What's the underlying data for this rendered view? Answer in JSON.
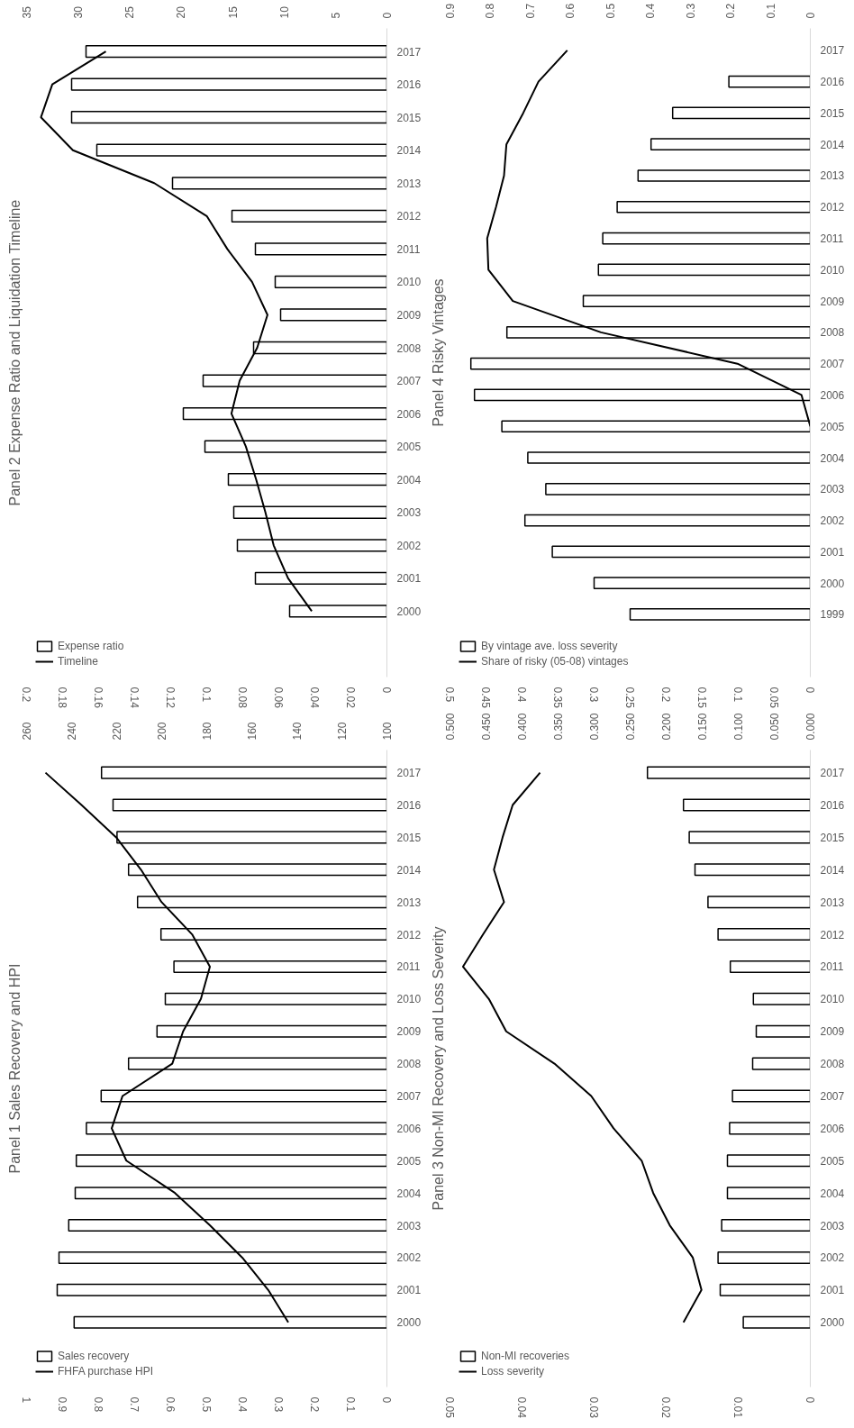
{
  "chart_data": [
    {
      "type": "bar",
      "orientation": "horizontal",
      "title": "Panel 2 Expense Ratio and Liquidation Timeline",
      "categories": [
        "2017",
        "2016",
        "2015",
        "2014",
        "2013",
        "2012",
        "2011",
        "2010",
        "2009",
        "2008",
        "2007",
        "2006",
        "2005",
        "2004",
        "2003",
        "2002",
        "2001",
        "2000"
      ],
      "series": [
        {
          "name": "Expense ratio",
          "type": "bar",
          "color": "#ffffff",
          "values": [
            0.167,
            0.175,
            0.175,
            0.161,
            0.119,
            0.086,
            0.073,
            0.062,
            0.059,
            0.074,
            0.102,
            0.113,
            0.101,
            0.088,
            0.085,
            0.083,
            0.073,
            0.054
          ]
        },
        {
          "name": "Timeline",
          "type": "line",
          "axis": "x2",
          "color": "#000000",
          "values": [
            27.3,
            32.5,
            33.6,
            30.5,
            22.6,
            17.5,
            15.5,
            13.1,
            11.6,
            12.6,
            14.3,
            15.1,
            13.7,
            12.7,
            11.8,
            11.0,
            9.6,
            7.3
          ]
        }
      ],
      "xlim": [
        0.2,
        0
      ],
      "xticks": [
        0.2,
        0.18,
        0.16,
        0.14,
        0.12,
        0.1,
        0.08,
        0.06,
        0.04,
        0.02,
        0
      ],
      "x2lim": [
        35,
        0
      ],
      "x2ticks": [
        35,
        30,
        25,
        20,
        15,
        10,
        5,
        0
      ],
      "legend": "bottom left",
      "grid": false
    },
    {
      "type": "bar",
      "orientation": "horizontal",
      "title": "Panel 4 Risky Vintages",
      "categories": [
        "2017",
        "2016",
        "2015",
        "2014",
        "2013",
        "2012",
        "2011",
        "2010",
        "2009",
        "2008",
        "2007",
        "2006",
        "2005",
        "2004",
        "2003",
        "2002",
        "2001",
        "2000",
        "1999"
      ],
      "series": [
        {
          "name": "By vintage ave. loss severity",
          "type": "bar",
          "color": "#ffffff",
          "values": [
            null,
            0.113,
            0.191,
            0.221,
            0.239,
            0.268,
            0.288,
            0.294,
            0.315,
            0.421,
            0.471,
            0.466,
            0.428,
            0.392,
            0.367,
            0.396,
            0.358,
            0.3,
            0.25
          ]
        },
        {
          "name": "Share of risky (05-08) vintages",
          "type": "line",
          "axis": "x2",
          "color": "#000000",
          "values": [
            0.607,
            0.679,
            0.717,
            0.759,
            0.765,
            0.785,
            0.807,
            0.804,
            0.743,
            0.523,
            0.182,
            0.022,
            0,
            null,
            null,
            null,
            null,
            null,
            null
          ]
        }
      ],
      "xlim": [
        0.5,
        0
      ],
      "xticks": [
        0.5,
        0.45,
        0.4,
        0.35,
        0.3,
        0.25,
        0.2,
        0.15,
        0.1,
        0.05,
        0
      ],
      "x2lim": [
        0.9,
        0
      ],
      "x2ticks": [
        0.9,
        0.8,
        0.7,
        0.6,
        0.5,
        0.4,
        0.3,
        0.2,
        0.1,
        0
      ],
      "legend": "bottom left",
      "grid": false
    },
    {
      "type": "bar",
      "orientation": "horizontal",
      "title": "Panel 1 Sales Recovery and HPI",
      "categories": [
        "2017",
        "2016",
        "2015",
        "2014",
        "2013",
        "2012",
        "2011",
        "2010",
        "2009",
        "2008",
        "2007",
        "2006",
        "2005",
        "2004",
        "2003",
        "2002",
        "2001",
        "2000"
      ],
      "series": [
        {
          "name": "Sales recovery",
          "type": "bar",
          "color": "#ffffff",
          "values": [
            0.792,
            0.76,
            0.749,
            0.717,
            0.692,
            0.627,
            0.591,
            0.615,
            0.638,
            0.717,
            0.793,
            0.834,
            0.862,
            0.865,
            0.883,
            0.91,
            0.915,
            0.868
          ]
        },
        {
          "name": "FHFA purchase HPI",
          "type": "line",
          "axis": "x2",
          "color": "#000000",
          "values": [
            251.6,
            235.6,
            220.2,
            209.2,
            200.1,
            186.5,
            178.6,
            182.6,
            190.5,
            195.3,
            217.4,
            222.2,
            215.7,
            194.1,
            178.6,
            164.2,
            152.7,
            143.8
          ]
        }
      ],
      "xlim": [
        1,
        0
      ],
      "xticks": [
        1,
        0.9,
        0.8,
        0.7,
        0.6,
        0.5,
        0.4,
        0.3,
        0.2,
        0.1,
        0
      ],
      "x2lim": [
        260,
        100
      ],
      "x2ticks": [
        260,
        240,
        220,
        200,
        180,
        160,
        140,
        120,
        100
      ],
      "legend": "bottom left",
      "grid": false
    },
    {
      "type": "bar",
      "orientation": "horizontal",
      "title": "Panel 3 Non-MI Recovery and Loss Severity",
      "categories": [
        "2017",
        "2016",
        "2015",
        "2014",
        "2013",
        "2012",
        "2011",
        "2010",
        "2009",
        "2008",
        "2007",
        "2006",
        "2005",
        "2004",
        "2003",
        "2002",
        "2001",
        "2000"
      ],
      "series": [
        {
          "name": "Non-MI recoveries",
          "type": "bar",
          "color": "#ffffff",
          "values": [
            0.0226,
            0.0176,
            0.0168,
            0.016,
            0.0142,
            0.0128,
            0.0111,
            0.0079,
            0.0075,
            0.008,
            0.0108,
            0.0112,
            0.0115,
            0.0115,
            0.0123,
            0.0128,
            0.0125,
            0.0093
          ]
        },
        {
          "name": "Loss severity",
          "type": "line",
          "axis": "x2",
          "color": "#000000",
          "values": [
            0.375,
            0.413,
            0.427,
            0.439,
            0.425,
            0.454,
            0.482,
            0.446,
            0.422,
            0.355,
            0.304,
            0.273,
            0.234,
            0.218,
            0.195,
            0.163,
            0.151,
            0.176
          ]
        }
      ],
      "xlim": [
        0.05,
        0
      ],
      "xticks": [
        0.05,
        0.04,
        0.03,
        0.02,
        0.01,
        0
      ],
      "x2lim": [
        0.5,
        0
      ],
      "x2ticks": [
        {
          "value": 0.5,
          "label": "0.500"
        },
        {
          "value": 0.45,
          "label": "0.450"
        },
        {
          "value": 0.4,
          "label": "0.400"
        },
        {
          "value": 0.35,
          "label": "0.350"
        },
        {
          "value": 0.3,
          "label": "0.300"
        },
        {
          "value": 0.25,
          "label": "0.250"
        },
        {
          "value": 0.2,
          "label": "0.200"
        },
        {
          "value": 0.15,
          "label": "0.150"
        },
        {
          "value": 0.1,
          "label": "0.100"
        },
        {
          "value": 0.05,
          "label": "0.050"
        },
        {
          "value": 0,
          "label": "0.000"
        }
      ],
      "legend": "bottom left",
      "grid": false
    }
  ]
}
